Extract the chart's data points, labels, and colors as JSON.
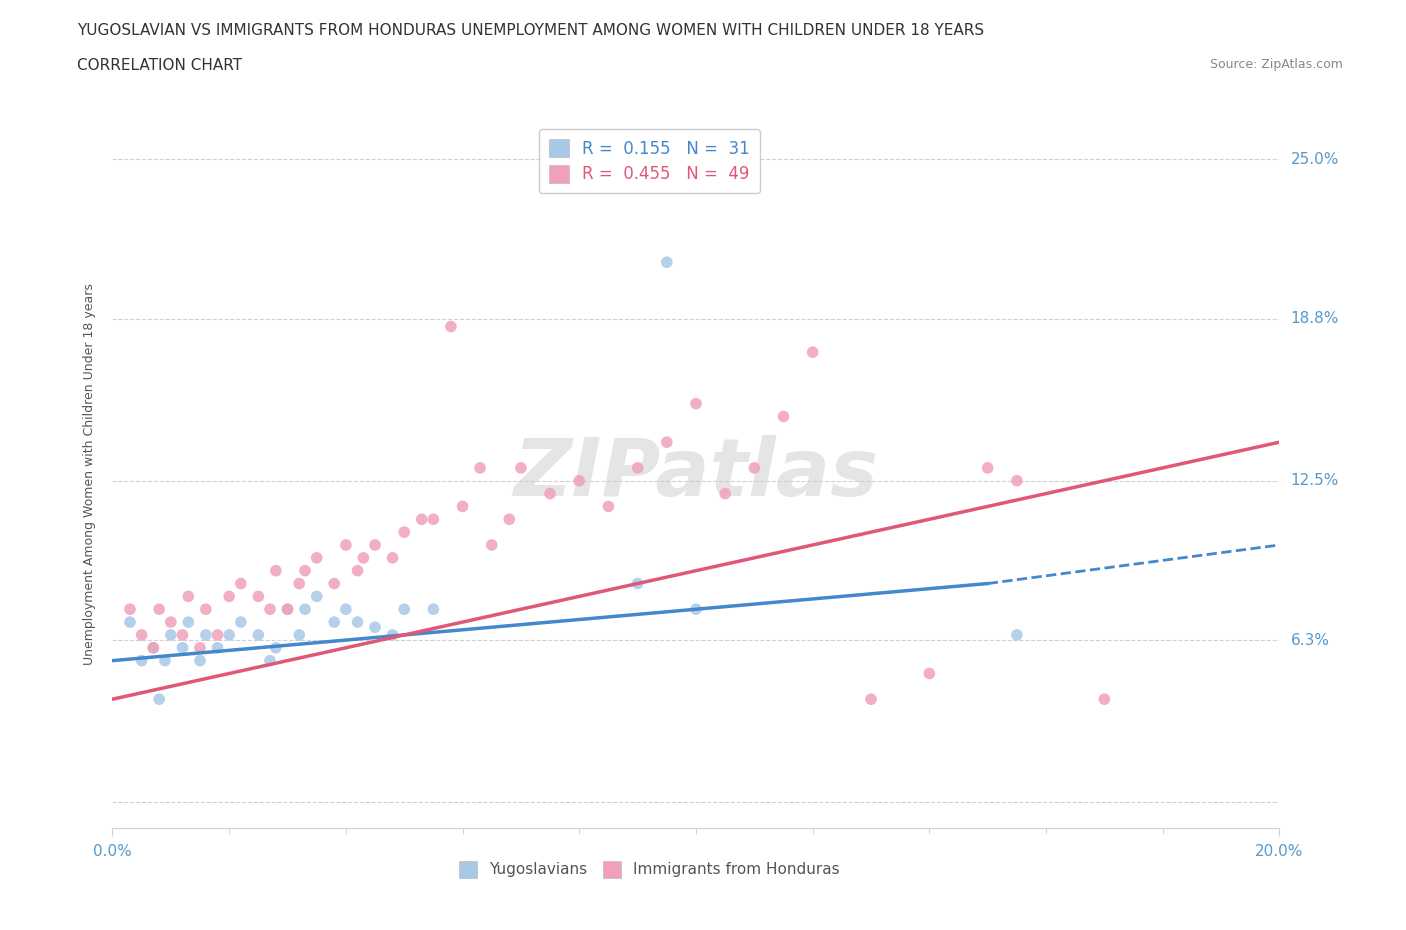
{
  "title_line1": "YUGOSLAVIAN VS IMMIGRANTS FROM HONDURAS UNEMPLOYMENT AMONG WOMEN WITH CHILDREN UNDER 18 YEARS",
  "title_line2": "CORRELATION CHART",
  "source_text": "Source: ZipAtlas.com",
  "ylabel": "Unemployment Among Women with Children Under 18 years",
  "xlim": [
    0.0,
    0.2
  ],
  "ylim": [
    -0.01,
    0.265
  ],
  "y_tick_positions": [
    0.0,
    0.063,
    0.125,
    0.188,
    0.25
  ],
  "y_tick_labels": [
    "",
    "6.3%",
    "12.5%",
    "18.8%",
    "25.0%"
  ],
  "grid_color": "#d0d0d0",
  "grid_style": "--",
  "background_color": "#ffffff",
  "yug_scatter": {
    "name": "Yugoslavians",
    "color": "#a8c8e8",
    "x": [
      0.003,
      0.005,
      0.007,
      0.008,
      0.009,
      0.01,
      0.012,
      0.013,
      0.015,
      0.016,
      0.018,
      0.02,
      0.022,
      0.025,
      0.027,
      0.028,
      0.03,
      0.032,
      0.033,
      0.035,
      0.038,
      0.04,
      0.042,
      0.045,
      0.048,
      0.05,
      0.055,
      0.09,
      0.095,
      0.1,
      0.155
    ],
    "y": [
      0.07,
      0.055,
      0.06,
      0.04,
      0.055,
      0.065,
      0.06,
      0.07,
      0.055,
      0.065,
      0.06,
      0.065,
      0.07,
      0.065,
      0.055,
      0.06,
      0.075,
      0.065,
      0.075,
      0.08,
      0.07,
      0.075,
      0.07,
      0.068,
      0.065,
      0.075,
      0.075,
      0.085,
      0.21,
      0.075,
      0.065
    ]
  },
  "hon_scatter": {
    "name": "Immigrants from Honduras",
    "color": "#f0a0b8",
    "x": [
      0.003,
      0.005,
      0.007,
      0.008,
      0.01,
      0.012,
      0.013,
      0.015,
      0.016,
      0.018,
      0.02,
      0.022,
      0.025,
      0.027,
      0.028,
      0.03,
      0.032,
      0.033,
      0.035,
      0.038,
      0.04,
      0.042,
      0.043,
      0.045,
      0.048,
      0.05,
      0.053,
      0.055,
      0.058,
      0.06,
      0.063,
      0.065,
      0.068,
      0.07,
      0.075,
      0.08,
      0.085,
      0.09,
      0.095,
      0.1,
      0.105,
      0.11,
      0.115,
      0.12,
      0.13,
      0.14,
      0.15,
      0.155,
      0.17
    ],
    "y": [
      0.075,
      0.065,
      0.06,
      0.075,
      0.07,
      0.065,
      0.08,
      0.06,
      0.075,
      0.065,
      0.08,
      0.085,
      0.08,
      0.075,
      0.09,
      0.075,
      0.085,
      0.09,
      0.095,
      0.085,
      0.1,
      0.09,
      0.095,
      0.1,
      0.095,
      0.105,
      0.11,
      0.11,
      0.185,
      0.115,
      0.13,
      0.1,
      0.11,
      0.13,
      0.12,
      0.125,
      0.115,
      0.13,
      0.14,
      0.155,
      0.12,
      0.13,
      0.15,
      0.175,
      0.04,
      0.05,
      0.13,
      0.125,
      0.04
    ]
  },
  "yug_line": {
    "color": "#4488cc",
    "line_style_solid": [
      0.0,
      0.15
    ],
    "line_style_dashed": [
      0.15,
      0.2
    ],
    "y_at_0": 0.055,
    "y_at_015": 0.085,
    "y_at_020": 0.1
  },
  "hon_line": {
    "color": "#e05878",
    "y_at_0": 0.04,
    "y_at_020": 0.14
  },
  "legend_entries": [
    {
      "label": "R =  0.155   N =  31",
      "patch_color": "#a8c8e8",
      "text_color": "#4488cc"
    },
    {
      "label": "R =  0.455   N =  49",
      "patch_color": "#f0a0b8",
      "text_color": "#e05878"
    }
  ],
  "watermark_text": "ZIPatlas",
  "watermark_color": "#cccccc",
  "title_fontsize": 11,
  "tick_fontsize": 11,
  "tick_color": "#5599cc",
  "ylabel_fontsize": 9,
  "ylabel_color": "#555555"
}
